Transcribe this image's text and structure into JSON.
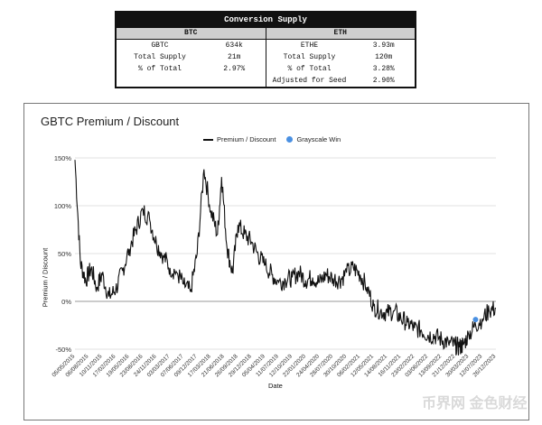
{
  "supply_table": {
    "title": "Conversion Supply",
    "btc": {
      "header": "BTC",
      "rows": [
        {
          "label": "GBTC",
          "value": "634k"
        },
        {
          "label": "Total Supply",
          "value": "21m"
        },
        {
          "label": "% of Total",
          "value": "2.97%"
        }
      ]
    },
    "eth": {
      "header": "ETH",
      "rows": [
        {
          "label": "ETHE",
          "value": "3.93m"
        },
        {
          "label": "Total Supply",
          "value": "120m"
        },
        {
          "label": "% of Total",
          "value": "3.28%"
        },
        {
          "label": "Adjusted for Seed",
          "value": "2.90%"
        }
      ]
    }
  },
  "watermark": "币界网 金色财经",
  "chart_data": {
    "type": "line",
    "title": "GBTC Premium / Discount",
    "xlabel": "Date",
    "ylabel": "Premium / Discount",
    "y_ticks": [
      "150%",
      "100%",
      "50%",
      "0%",
      "-50%"
    ],
    "ylim": [
      -0.5,
      1.5
    ],
    "x_tick_labels": [
      "05/05/2015",
      "06/08/2015",
      "10/11/2015",
      "17/02/2016",
      "19/05/2016",
      "23/08/2016",
      "24/11/2016",
      "03/03/2017",
      "07/06/2017",
      "09/12/2017",
      "17/03/2018",
      "21/06/2018",
      "26/09/2018",
      "29/12/2018",
      "05/04/2019",
      "11/07/2019",
      "12/10/2019",
      "22/01/2020",
      "24/04/2020",
      "28/07/2020",
      "30/10/2020",
      "06/02/2021",
      "12/05/2021",
      "14/08/2021",
      "16/11/2021",
      "23/02/2022",
      "03/06/2022",
      "13/09/2022",
      "21/12/2022",
      "30/03/2023",
      "12/07/2023",
      "26/12/2023"
    ],
    "legend": [
      "Premium / Discount",
      "Grayscale Win"
    ],
    "legend_position": "top-center",
    "series": [
      {
        "name": "Premium / Discount",
        "color": "#111111",
        "points": [
          [
            0.0,
            1.48
          ],
          [
            0.4,
            0.4
          ],
          [
            0.8,
            0.22
          ],
          [
            1.2,
            0.35
          ],
          [
            1.6,
            0.15
          ],
          [
            2.0,
            0.28
          ],
          [
            2.5,
            0.05
          ],
          [
            3.0,
            0.12
          ],
          [
            3.5,
            0.32
          ],
          [
            4.0,
            0.55
          ],
          [
            4.5,
            0.75
          ],
          [
            5.0,
            0.96
          ],
          [
            5.5,
            0.85
          ],
          [
            6.0,
            0.6
          ],
          [
            6.5,
            0.48
          ],
          [
            7.0,
            0.35
          ],
          [
            7.5,
            0.3
          ],
          [
            8.0,
            0.18
          ],
          [
            8.5,
            0.1
          ],
          [
            9.0,
            0.5
          ],
          [
            9.5,
            1.38
          ],
          [
            10.0,
            0.95
          ],
          [
            10.5,
            0.7
          ],
          [
            10.8,
            1.3
          ],
          [
            11.2,
            0.55
          ],
          [
            11.6,
            0.3
          ],
          [
            12.0,
            0.8
          ],
          [
            12.5,
            0.7
          ],
          [
            13.0,
            0.62
          ],
          [
            13.5,
            0.48
          ],
          [
            14.0,
            0.38
          ],
          [
            14.5,
            0.28
          ],
          [
            15.0,
            0.2
          ],
          [
            15.5,
            0.22
          ],
          [
            16.0,
            0.25
          ],
          [
            16.5,
            0.3
          ],
          [
            17.0,
            0.22
          ],
          [
            17.5,
            0.25
          ],
          [
            18.0,
            0.2
          ],
          [
            18.5,
            0.28
          ],
          [
            19.0,
            0.24
          ],
          [
            19.5,
            0.22
          ],
          [
            20.0,
            0.3
          ],
          [
            20.5,
            0.35
          ],
          [
            21.0,
            0.28
          ],
          [
            21.5,
            0.15
          ],
          [
            22.0,
            -0.05
          ],
          [
            22.5,
            -0.1
          ],
          [
            23.0,
            -0.12
          ],
          [
            23.5,
            -0.1
          ],
          [
            24.0,
            -0.18
          ],
          [
            24.5,
            -0.22
          ],
          [
            25.0,
            -0.28
          ],
          [
            25.5,
            -0.3
          ],
          [
            26.0,
            -0.35
          ],
          [
            26.5,
            -0.36
          ],
          [
            27.0,
            -0.4
          ],
          [
            27.5,
            -0.43
          ],
          [
            28.0,
            -0.46
          ],
          [
            28.3,
            -0.48
          ],
          [
            28.6,
            -0.45
          ],
          [
            29.0,
            -0.35
          ],
          [
            29.5,
            -0.25
          ],
          [
            30.0,
            -0.18
          ],
          [
            30.5,
            -0.1
          ],
          [
            31.0,
            -0.07
          ]
        ]
      }
    ],
    "grayscale_win": {
      "x": 29.5,
      "y": -0.19,
      "color": "#4a90e2"
    }
  }
}
